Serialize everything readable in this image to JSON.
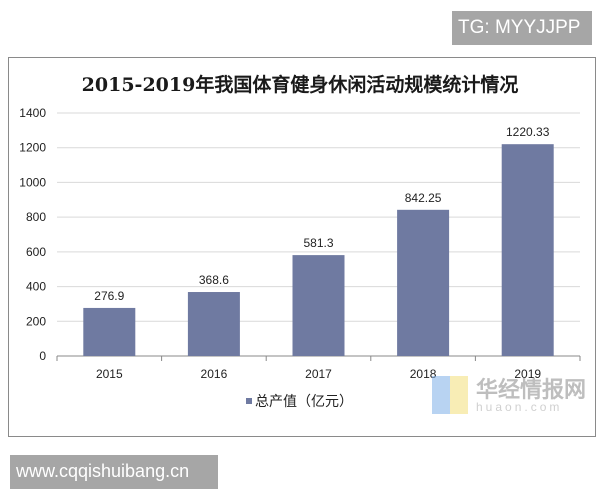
{
  "watermark_tag": "TG: MYYJJPP",
  "source_url": "www.cqqishuibang.cn",
  "logo_watermark": {
    "cn": "华经情报网",
    "en": "huaon.com"
  },
  "chart_data": {
    "type": "bar",
    "title": "2015-2019年我国体育健身休闲活动规模统计情况",
    "categories": [
      "2015",
      "2016",
      "2017",
      "2018",
      "2019"
    ],
    "series": [
      {
        "name": "总产值（亿元）",
        "values": [
          276.9,
          368.6,
          581.3,
          842.25,
          1220.33
        ],
        "color": "#6f7aa1"
      }
    ],
    "data_labels": [
      "276.9",
      "368.6",
      "581.3",
      "842.25",
      "1220.33"
    ],
    "ylim": [
      0,
      1400
    ],
    "yticks": [
      0,
      200,
      400,
      600,
      800,
      1000,
      1200,
      1400
    ],
    "grid": true,
    "legend": "bottom",
    "xlabel": "",
    "ylabel": ""
  }
}
